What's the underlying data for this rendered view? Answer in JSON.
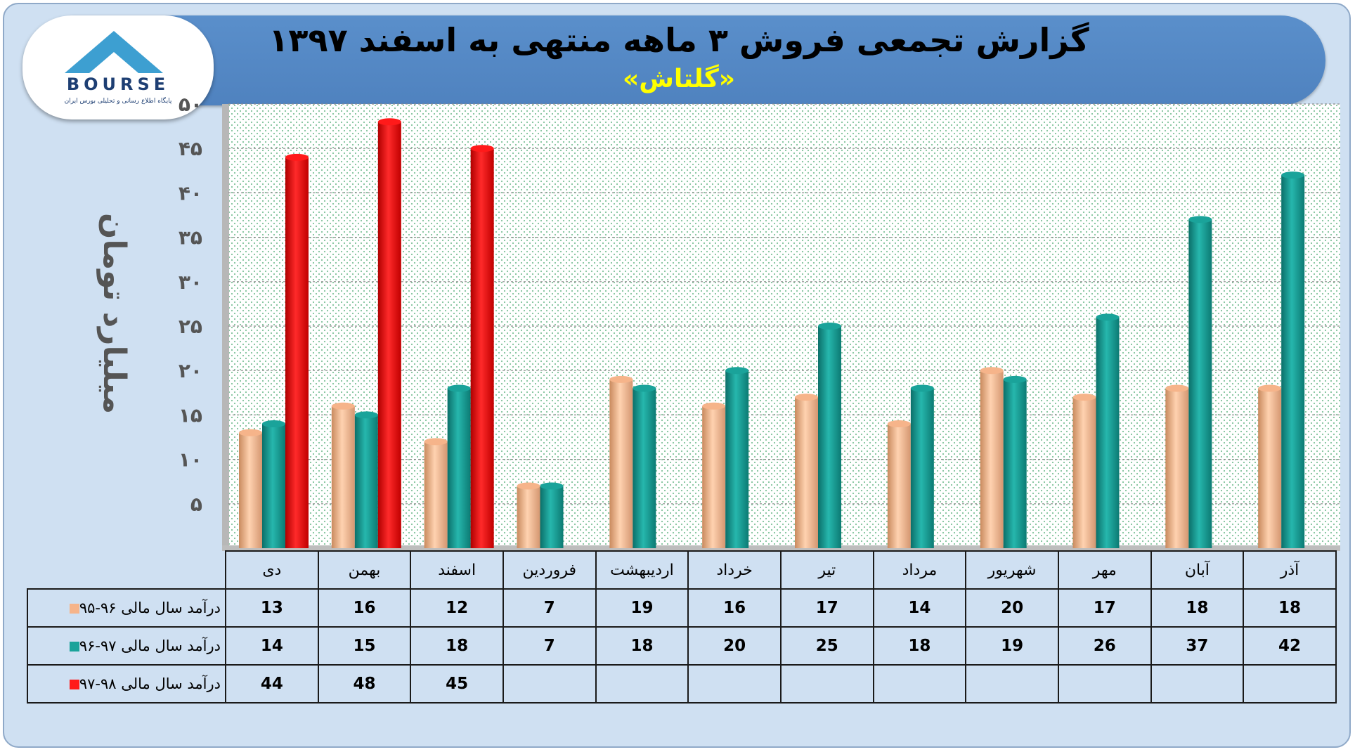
{
  "header": {
    "title": "گزارش تجمعی فروش ۳ ماهه منتهی به اسفند ۱۳۹۷",
    "subtitle": "«گلتاش»"
  },
  "logo": {
    "text": "BOURSE",
    "tagline": "پایگاه اطلاع رسانی و تحلیلی بورس ایران"
  },
  "chart_data": {
    "type": "bar",
    "ylabel": "میلیارد تومان",
    "ylim": [
      0,
      50
    ],
    "yticks": [
      "۵",
      "۱۰",
      "۱۵",
      "۲۰",
      "۲۵",
      "۳۰",
      "۳۵",
      "۴۰",
      "۴۵",
      "۵۰"
    ],
    "grid": true,
    "categories": [
      "دی",
      "بهمن",
      "اسفند",
      "فروردین",
      "اردیبهشت",
      "خرداد",
      "تیر",
      "مرداد",
      "شهریور",
      "مهر",
      "آبان",
      "آذر"
    ],
    "series": [
      {
        "name": "درآمد سال مالی ۹۶-۹۵",
        "color": "#f6b48a",
        "values": [
          13,
          16,
          12,
          7,
          19,
          16,
          17,
          14,
          20,
          17,
          18,
          18
        ]
      },
      {
        "name": "درآمد سال مالی ۹۷-۹۶",
        "color": "#1aa39a",
        "values": [
          14,
          15,
          18,
          7,
          18,
          20,
          25,
          18,
          19,
          26,
          37,
          42
        ]
      },
      {
        "name": "درآمد سال مالی ۹۸-۹۷",
        "color": "#ff1a1a",
        "values": [
          44,
          48,
          45,
          null,
          null,
          null,
          null,
          null,
          null,
          null,
          null,
          null
        ]
      }
    ],
    "table_rows": [
      [
        "13",
        "16",
        "12",
        "7",
        "19",
        "16",
        "17",
        "14",
        "20",
        "17",
        "18",
        "18"
      ],
      [
        "14",
        "15",
        "18",
        "7",
        "18",
        "20",
        "25",
        "18",
        "19",
        "26",
        "37",
        "42"
      ],
      [
        "44",
        "48",
        "45",
        "",
        "",
        "",
        "",
        "",
        "",
        "",
        "",
        ""
      ]
    ]
  }
}
